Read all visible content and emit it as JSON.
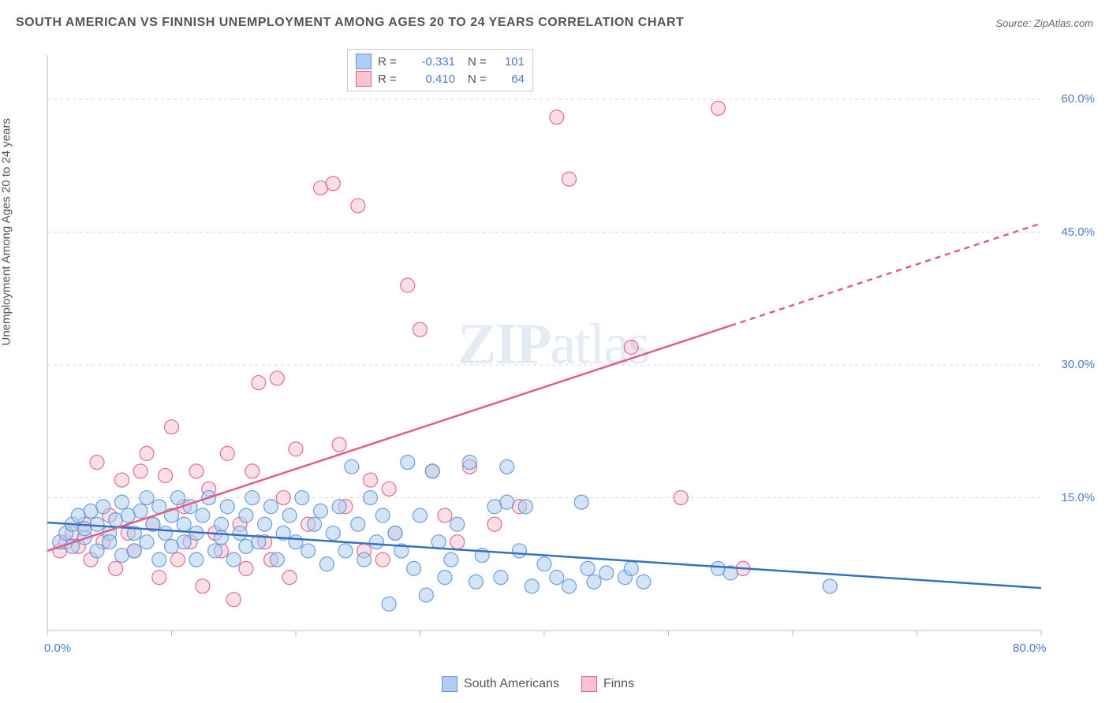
{
  "title": "SOUTH AMERICAN VS FINNISH UNEMPLOYMENT AMONG AGES 20 TO 24 YEARS CORRELATION CHART",
  "source": "Source: ZipAtlas.com",
  "y_axis_label": "Unemployment Among Ages 20 to 24 years",
  "watermark": "ZIPatlas",
  "chart": {
    "type": "scatter",
    "background_color": "#ffffff",
    "grid_color": "#d8d8d8",
    "axis_color": "#bcbcbc",
    "xlim": [
      0,
      80
    ],
    "ylim": [
      0,
      65
    ],
    "x_ticks": [
      0,
      10,
      20,
      30,
      40,
      50,
      60,
      70,
      80
    ],
    "y_ticks": [
      15,
      30,
      45,
      60
    ],
    "x_tick_labels": {
      "0": "0.0%",
      "80": "80.0%"
    },
    "y_tick_labels": {
      "15": "15.0%",
      "30": "30.0%",
      "45": "45.0%",
      "60": "60.0%"
    },
    "marker_radius": 9,
    "marker_opacity": 0.55,
    "line_width": 2.5,
    "series": [
      {
        "name": "South Americans",
        "color_fill": "#aecdf0",
        "color_stroke": "#5e96d8",
        "line_color": "#3670c2",
        "correlation_R": "-0.331",
        "correlation_N": "101",
        "regression": {
          "x1": 0,
          "y1": 12.2,
          "x2": 80,
          "y2": 4.8,
          "dashed_from_x": null
        },
        "points": [
          [
            1,
            10
          ],
          [
            1.5,
            11
          ],
          [
            2,
            12
          ],
          [
            2,
            9.5
          ],
          [
            2.5,
            13
          ],
          [
            3,
            10.5
          ],
          [
            3,
            11.5
          ],
          [
            3.5,
            13.5
          ],
          [
            4,
            9
          ],
          [
            4,
            12
          ],
          [
            4.5,
            14
          ],
          [
            5,
            11
          ],
          [
            5,
            10
          ],
          [
            5.5,
            12.5
          ],
          [
            6,
            14.5
          ],
          [
            6,
            8.5
          ],
          [
            6.5,
            13
          ],
          [
            7,
            11
          ],
          [
            7,
            9
          ],
          [
            7.5,
            13.5
          ],
          [
            8,
            15
          ],
          [
            8,
            10
          ],
          [
            8.5,
            12
          ],
          [
            9,
            14
          ],
          [
            9,
            8
          ],
          [
            9.5,
            11
          ],
          [
            10,
            13
          ],
          [
            10,
            9.5
          ],
          [
            10.5,
            15
          ],
          [
            11,
            12
          ],
          [
            11,
            10
          ],
          [
            11.5,
            14
          ],
          [
            12,
            8
          ],
          [
            12,
            11
          ],
          [
            12.5,
            13
          ],
          [
            13,
            15
          ],
          [
            13.5,
            9
          ],
          [
            14,
            12
          ],
          [
            14,
            10.5
          ],
          [
            14.5,
            14
          ],
          [
            15,
            8
          ],
          [
            15.5,
            11
          ],
          [
            16,
            13
          ],
          [
            16,
            9.5
          ],
          [
            16.5,
            15
          ],
          [
            17,
            10
          ],
          [
            17.5,
            12
          ],
          [
            18,
            14
          ],
          [
            18.5,
            8
          ],
          [
            19,
            11
          ],
          [
            19.5,
            13
          ],
          [
            20,
            10
          ],
          [
            20.5,
            15
          ],
          [
            21,
            9
          ],
          [
            21.5,
            12
          ],
          [
            22,
            13.5
          ],
          [
            22.5,
            7.5
          ],
          [
            23,
            11
          ],
          [
            23.5,
            14
          ],
          [
            24,
            9
          ],
          [
            24.5,
            18.5
          ],
          [
            25,
            12
          ],
          [
            25.5,
            8
          ],
          [
            26,
            15
          ],
          [
            26.5,
            10
          ],
          [
            27,
            13
          ],
          [
            27.5,
            3
          ],
          [
            28,
            11
          ],
          [
            28.5,
            9
          ],
          [
            29,
            19
          ],
          [
            29.5,
            7
          ],
          [
            30,
            13
          ],
          [
            30.5,
            4
          ],
          [
            31,
            18
          ],
          [
            31.5,
            10
          ],
          [
            32,
            6
          ],
          [
            32.5,
            8
          ],
          [
            33,
            12
          ],
          [
            34,
            19
          ],
          [
            34.5,
            5.5
          ],
          [
            35,
            8.5
          ],
          [
            36,
            14
          ],
          [
            36.5,
            6
          ],
          [
            37,
            18.5
          ],
          [
            38,
            9
          ],
          [
            39,
            5
          ],
          [
            40,
            7.5
          ],
          [
            41,
            6
          ],
          [
            42,
            5
          ],
          [
            43,
            14.5
          ],
          [
            43.5,
            7
          ],
          [
            44,
            5.5
          ],
          [
            45,
            6.5
          ],
          [
            46.5,
            6
          ],
          [
            47,
            7
          ],
          [
            48,
            5.5
          ],
          [
            54,
            7
          ],
          [
            55,
            6.5
          ],
          [
            63,
            5
          ],
          [
            37,
            14.5
          ],
          [
            38.5,
            14
          ]
        ]
      },
      {
        "name": "Finns",
        "color_fill": "#f6c4d1",
        "color_stroke": "#e25c88",
        "line_color": "#e25c88",
        "correlation_R": "0.410",
        "correlation_N": "64",
        "regression": {
          "x1": 0,
          "y1": 9.0,
          "x2": 80,
          "y2": 46.0,
          "dashed_from_x": 55
        },
        "points": [
          [
            1,
            9
          ],
          [
            1.5,
            10
          ],
          [
            2,
            11
          ],
          [
            2.5,
            9.5
          ],
          [
            3,
            12
          ],
          [
            3.5,
            8
          ],
          [
            4,
            19
          ],
          [
            4.5,
            10
          ],
          [
            5,
            13
          ],
          [
            5.5,
            7
          ],
          [
            6,
            17
          ],
          [
            6.5,
            11
          ],
          [
            7,
            9
          ],
          [
            7.5,
            18
          ],
          [
            8,
            20
          ],
          [
            8.5,
            12
          ],
          [
            9,
            6
          ],
          [
            9.5,
            17.5
          ],
          [
            10,
            23
          ],
          [
            10.5,
            8
          ],
          [
            11,
            14
          ],
          [
            11.5,
            10
          ],
          [
            12,
            18
          ],
          [
            12.5,
            5
          ],
          [
            13,
            16
          ],
          [
            13.5,
            11
          ],
          [
            14,
            9
          ],
          [
            14.5,
            20
          ],
          [
            15,
            3.5
          ],
          [
            15.5,
            12
          ],
          [
            16,
            7
          ],
          [
            16.5,
            18
          ],
          [
            17,
            28
          ],
          [
            17.5,
            10
          ],
          [
            18,
            8
          ],
          [
            18.5,
            28.5
          ],
          [
            19,
            15
          ],
          [
            19.5,
            6
          ],
          [
            20,
            20.5
          ],
          [
            21,
            12
          ],
          [
            22,
            50
          ],
          [
            23,
            50.5
          ],
          [
            23.5,
            21
          ],
          [
            24,
            14
          ],
          [
            25,
            48
          ],
          [
            25.5,
            9
          ],
          [
            26,
            17
          ],
          [
            27,
            8
          ],
          [
            27.5,
            16
          ],
          [
            28,
            11
          ],
          [
            29,
            39
          ],
          [
            30,
            34
          ],
          [
            31,
            18
          ],
          [
            32,
            13
          ],
          [
            33,
            10
          ],
          [
            34,
            18.5
          ],
          [
            36,
            12
          ],
          [
            38,
            14
          ],
          [
            41,
            58
          ],
          [
            42,
            51
          ],
          [
            47,
            32
          ],
          [
            51,
            15
          ],
          [
            56,
            7
          ],
          [
            54,
            59
          ]
        ]
      }
    ]
  },
  "legend_top": [
    {
      "swatch_fill": "#aecdf0",
      "swatch_stroke": "#5e96d8",
      "r_label": "R =",
      "r_value": "-0.331",
      "n_label": "N =",
      "n_value": "101"
    },
    {
      "swatch_fill": "#f6c4d1",
      "swatch_stroke": "#e25c88",
      "r_label": "R =",
      "r_value": "0.410",
      "n_label": "N =",
      "n_value": "64"
    }
  ],
  "legend_bottom": [
    {
      "swatch_fill": "#aecdf0",
      "swatch_stroke": "#5e96d8",
      "label": "South Americans"
    },
    {
      "swatch_fill": "#f6c4d1",
      "swatch_stroke": "#e25c88",
      "label": "Finns"
    }
  ]
}
